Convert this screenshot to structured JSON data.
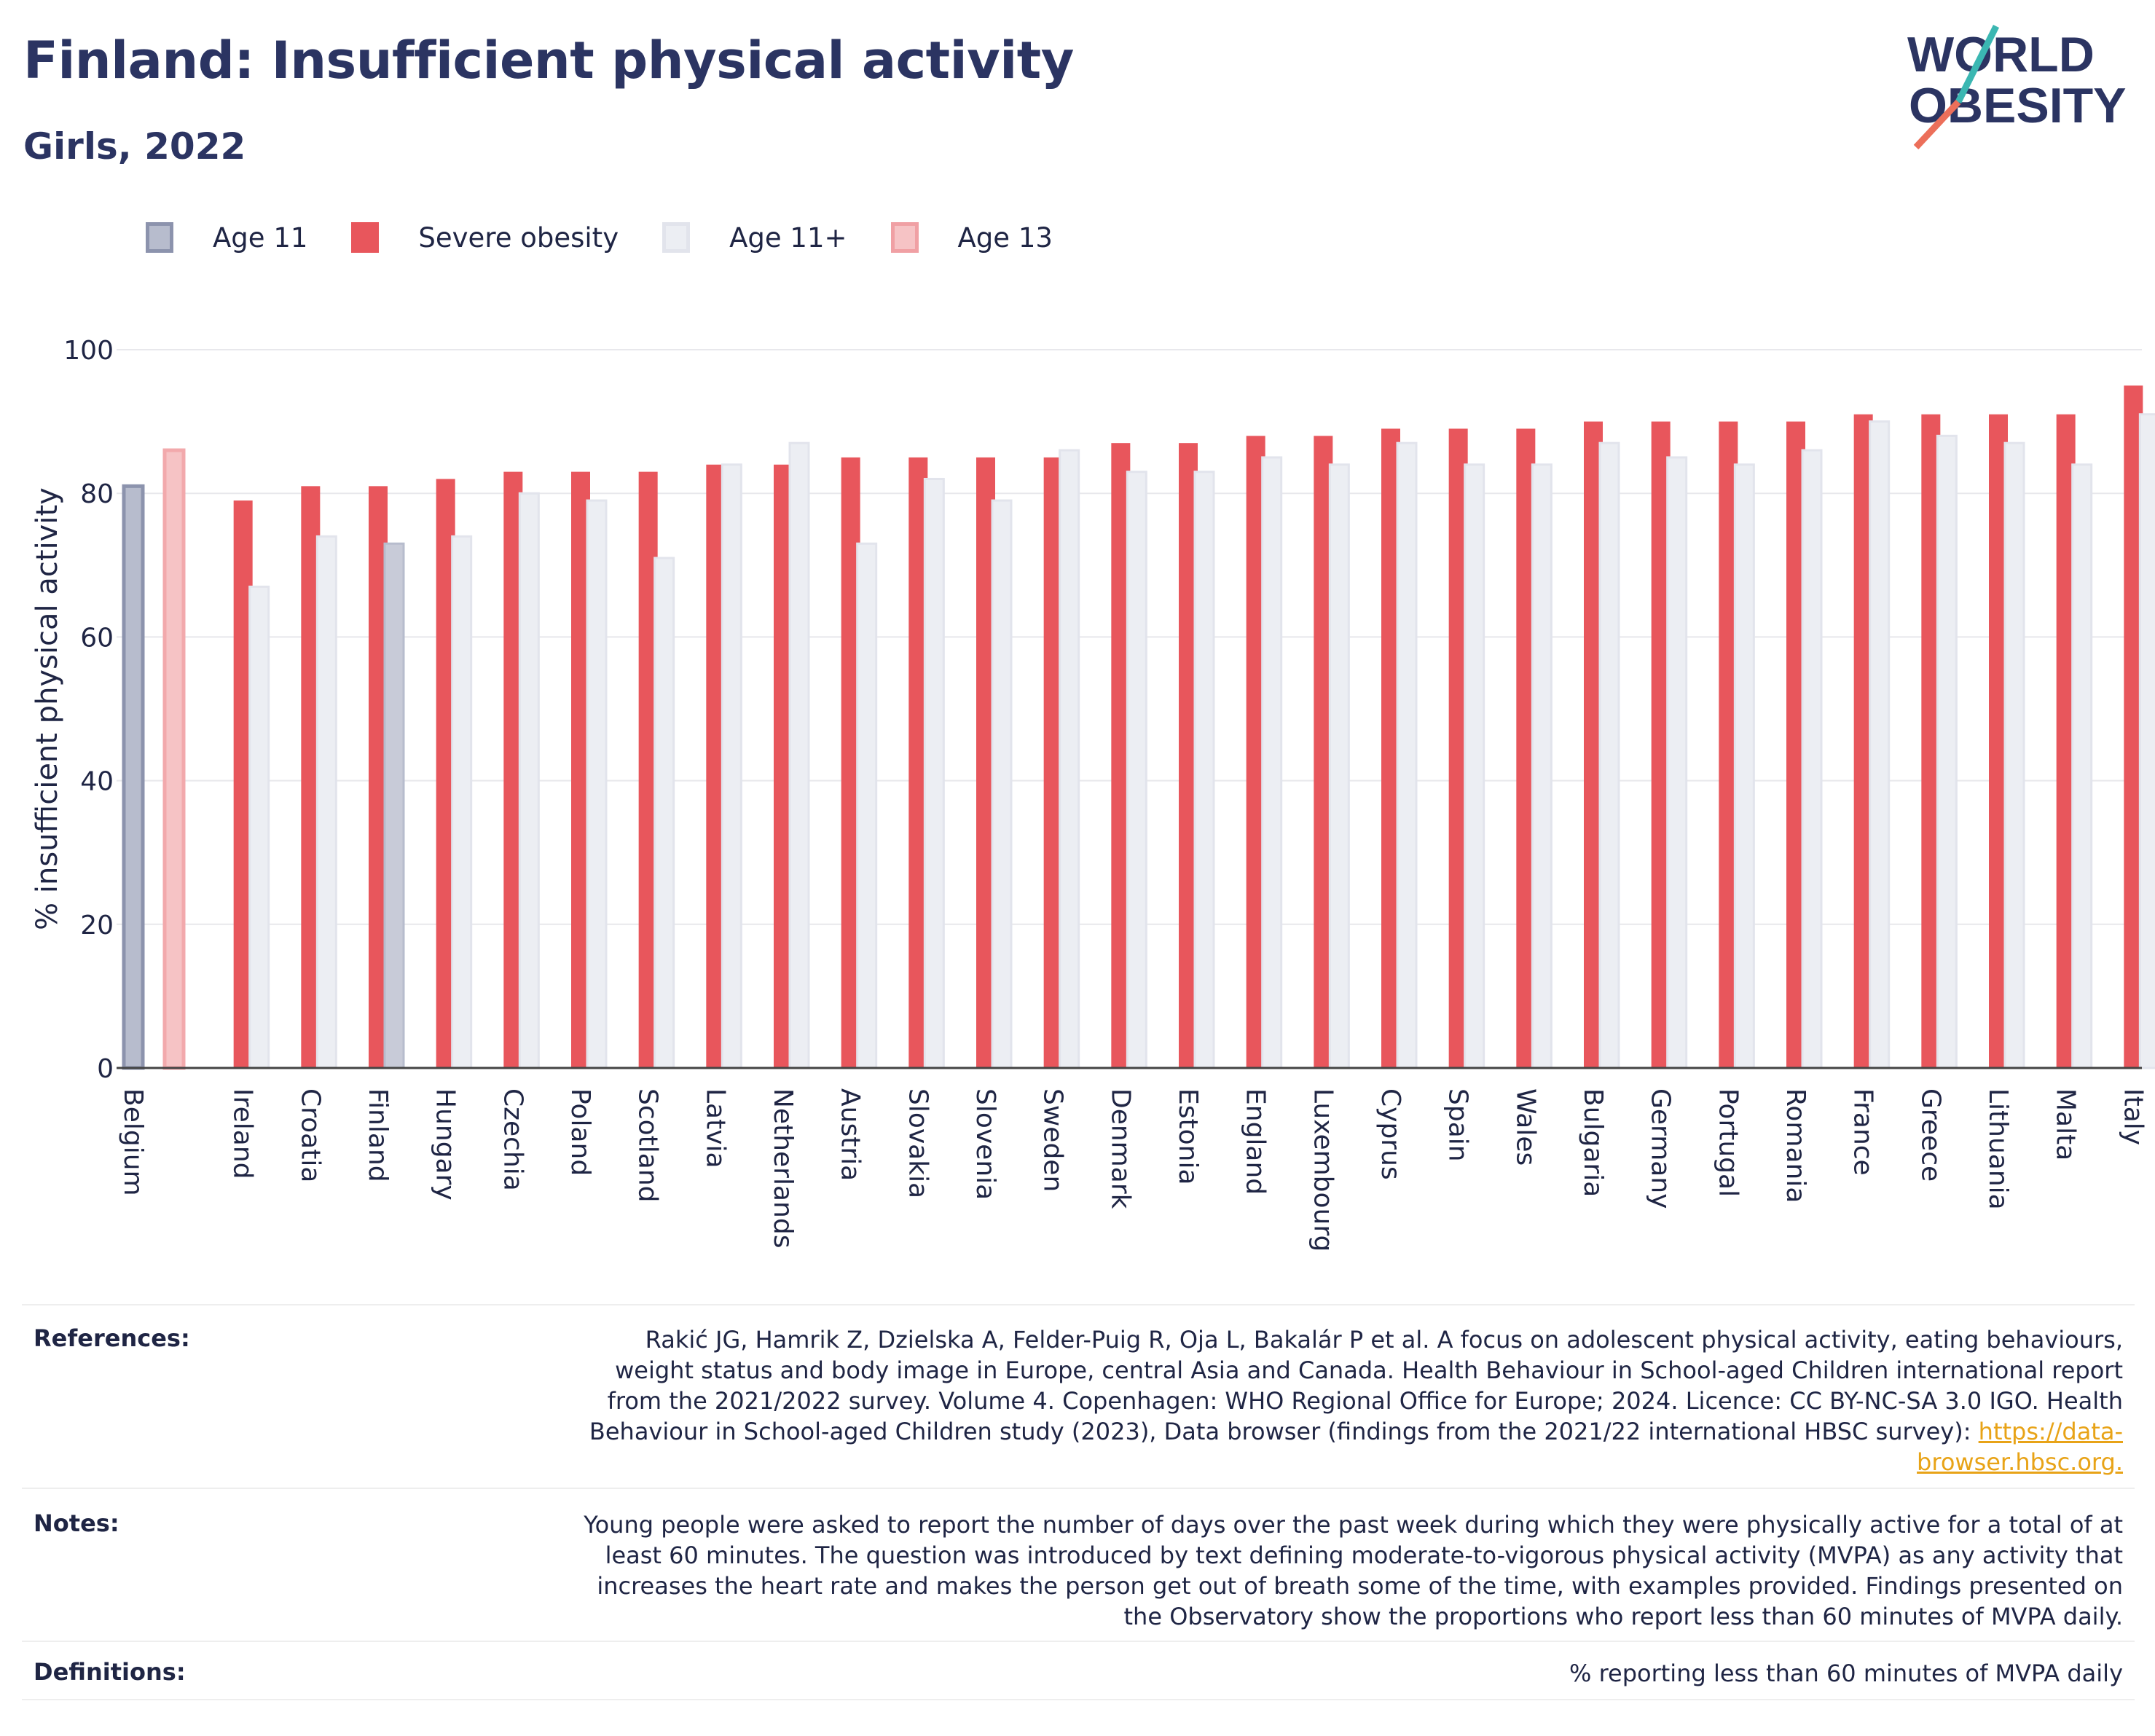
{
  "header": {
    "title": "Finland: Insufficient physical activity",
    "subtitle": "Girls, 2022"
  },
  "logo": {
    "line1": "WORLD",
    "line2": "OBESITY"
  },
  "legend": [
    {
      "label": "Age 11",
      "color": "#b7bccd",
      "stroke": "#8c93ad"
    },
    {
      "label": "Severe obesity",
      "color": "#e8565c",
      "stroke": "#e8565c"
    },
    {
      "label": "Age 11+",
      "color": "#e9eaf0",
      "stroke": "#dcdfe8"
    },
    {
      "label": "Age 13",
      "color": "#f6c3c5",
      "stroke": "#f0a0a4"
    }
  ],
  "chart_data": {
    "type": "bar",
    "ylabel": "% insufficient physical activity",
    "ylim": [
      0,
      100
    ],
    "yticks": [
      0,
      20,
      40,
      60,
      80,
      100
    ],
    "grid": true,
    "categories": [
      "Belgium",
      "Ireland",
      "Croatia",
      "Finland",
      "Hungary",
      "Czechia",
      "Poland",
      "Scotland",
      "Latvia",
      "Netherlands",
      "Austria",
      "Slovakia",
      "Slovenia",
      "Sweden",
      "Denmark",
      "Estonia",
      "England",
      "Luxembourg",
      "Cyprus",
      "Spain",
      "Wales",
      "Bulgaria",
      "Germany",
      "Portugal",
      "Romania",
      "France",
      "Greece",
      "Lithuania",
      "Malta",
      "Italy"
    ],
    "series": [
      {
        "name": "Age 11",
        "color": "#b7bccd",
        "values": [
          81,
          null,
          null,
          null,
          null,
          null,
          null,
          null,
          null,
          null,
          null,
          null,
          null,
          null,
          null,
          null,
          null,
          null,
          null,
          null,
          null,
          null,
          null,
          null,
          null,
          null,
          null,
          null,
          null,
          null
        ]
      },
      {
        "name": "Age 13",
        "color": "#f6c3c5",
        "values": [
          86,
          null,
          null,
          null,
          null,
          null,
          null,
          null,
          null,
          null,
          null,
          null,
          null,
          null,
          null,
          null,
          null,
          null,
          null,
          null,
          null,
          null,
          null,
          null,
          null,
          null,
          null,
          null,
          null,
          null
        ]
      },
      {
        "name": "Severe obesity",
        "color": "#e8565c",
        "values": [
          null,
          79,
          81,
          81,
          82,
          83,
          83,
          83,
          84,
          84,
          85,
          85,
          85,
          85,
          87,
          87,
          88,
          88,
          89,
          89,
          89,
          90,
          90,
          90,
          90,
          91,
          91,
          91,
          91,
          95
        ]
      },
      {
        "name": "Age 11+",
        "color": "#e9eaf0",
        "values": [
          null,
          67,
          74,
          73,
          74,
          80,
          79,
          71,
          84,
          87,
          73,
          82,
          79,
          86,
          83,
          83,
          85,
          84,
          87,
          84,
          84,
          87,
          85,
          84,
          86,
          90,
          88,
          87,
          84,
          91
        ]
      }
    ],
    "highlight": {
      "category": "Finland",
      "series": "Age 11+",
      "color": "#c8cbd8"
    }
  },
  "footer": {
    "references_label": "References:",
    "references_text": "Rakić JG, Hamrik Z, Dzielska A, Felder-Puig R, Oja L, Bakalár P et al. A focus on adolescent physical activity, eating behaviours, weight status and body image in Europe, central Asia and Canada. Health Behaviour in School-aged Children international report from the 2021/2022 survey. Volume 4. Copenhagen: WHO Regional Office for Europe; 2024. Licence: CC BY-NC-SA 3.0 IGO. Health Behaviour in School-aged Children study (2023), Data browser (findings from the 2021/22 international HBSC survey): ",
    "references_link": "https://data-browser.hbsc.org.",
    "notes_label": "Notes:",
    "notes_text": "Young people were asked to report the number of days over the past week during which they were physically active for a total of at least 60 minutes. The question was introduced by text defining moderate-to-vigorous physical activity (MVPA) as any activity that increases the heart rate and makes the person get out of breath some of the time, with examples provided. Findings presented on the Observatory show the proportions who report less than 60 minutes of MVPA daily.",
    "definitions_label": "Definitions:",
    "definitions_text": "% reporting less than 60 minutes of MVPA daily"
  }
}
